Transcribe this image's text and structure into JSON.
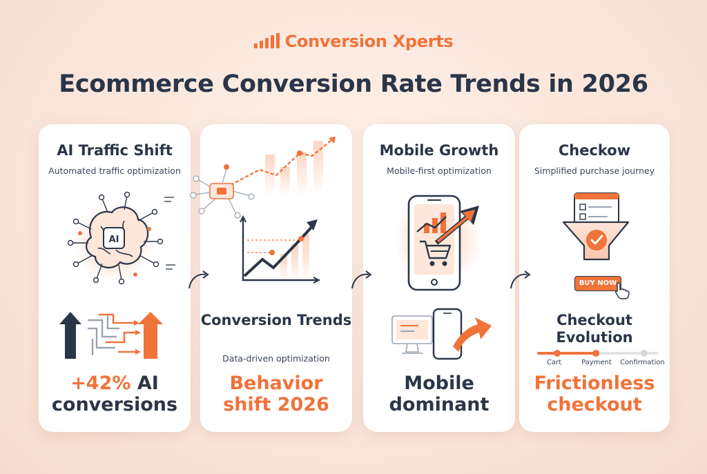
{
  "brand": {
    "name": "Conversion Xperts",
    "color": "#f0733a"
  },
  "title": "Ecommerce Conversion Rate Trends in 2026",
  "colors": {
    "accent": "#f0733a",
    "text": "#2a3548"
  },
  "cards": [
    {
      "title": "AI Traffic Shift",
      "subtitle": "Automated traffic optimization",
      "icon_label": "AI",
      "headline_1": "+42%",
      "headline_2": "AI",
      "headline_3": "conversions"
    },
    {
      "title": "Conversion Trends",
      "subtitle": "Data-driven optimization",
      "headline": "Behavior shift 2026"
    },
    {
      "title": "Mobile Growth",
      "subtitle": "Mobile-first optimization",
      "headline": "Mobile dominant"
    },
    {
      "title": "Checkow",
      "subtitle": "Simplified purchase journey",
      "button_label": "BUY NOW",
      "section_title": "Checkout Evolution",
      "steps": [
        "Cart",
        "Payment",
        "Confirmation"
      ],
      "progress": 0.5,
      "headline": "Frictionless checkout"
    }
  ]
}
